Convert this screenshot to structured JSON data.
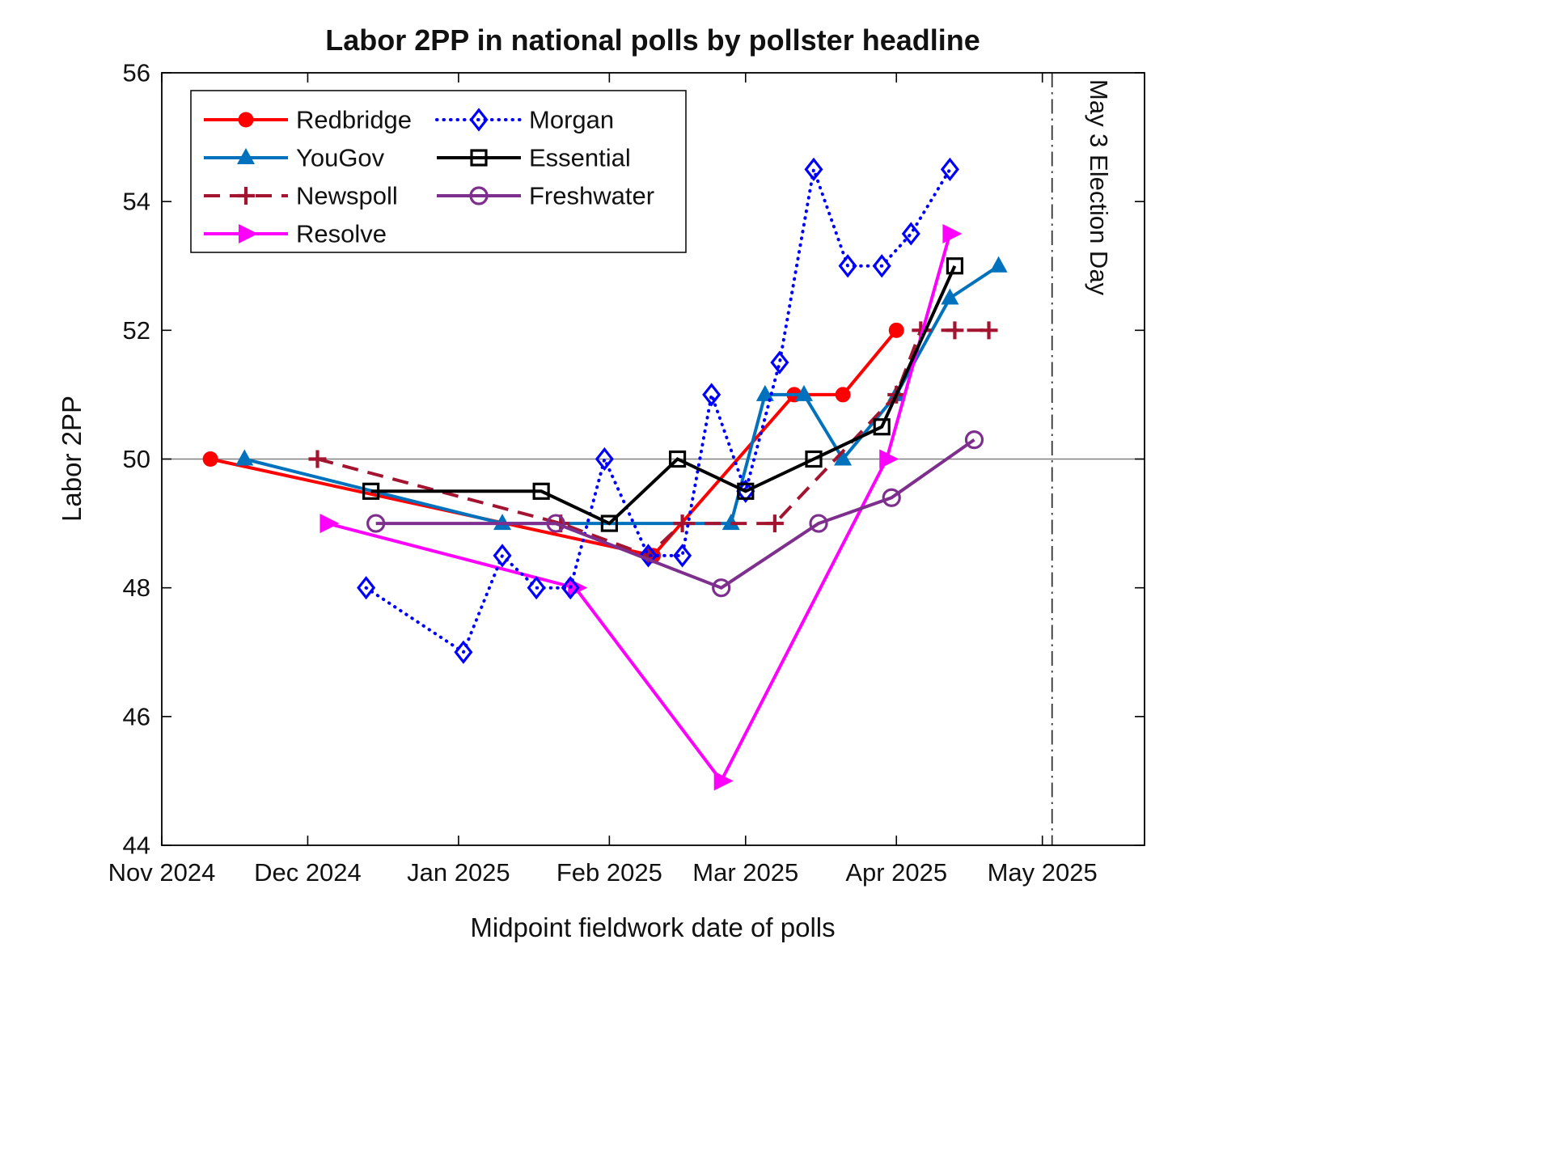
{
  "chart_data": {
    "type": "line",
    "title": "Labor 2PP in national polls by pollster headline",
    "xlabel": "Midpoint fieldwork date of polls",
    "ylabel": "Labor 2PP",
    "x_range": [
      "2024-11-01",
      "2025-05-22"
    ],
    "ylim": [
      44,
      56
    ],
    "yticks": [
      44,
      46,
      48,
      50,
      52,
      54,
      56
    ],
    "xticks": [
      {
        "date": "2024-11-01",
        "label": "Nov 2024"
      },
      {
        "date": "2024-12-01",
        "label": "Dec 2024"
      },
      {
        "date": "2025-01-01",
        "label": "Jan 2025"
      },
      {
        "date": "2025-02-01",
        "label": "Feb 2025"
      },
      {
        "date": "2025-03-01",
        "label": "Mar 2025"
      },
      {
        "date": "2025-04-01",
        "label": "Apr 2025"
      },
      {
        "date": "2025-05-01",
        "label": "May 2025"
      }
    ],
    "grid": "single horizontal reference line at y=50",
    "reference_line_y": 50,
    "event_line": {
      "date": "2025-05-03",
      "label": "May 3 Election Day",
      "style": "dash-dot",
      "color": "#333333"
    },
    "legend": {
      "position": "top-left",
      "columns": 2,
      "column1": [
        "Redbridge",
        "YouGov",
        "Newspoll",
        "Resolve"
      ],
      "column2": [
        "Morgan",
        "Essential",
        "Freshwater"
      ]
    },
    "series": [
      {
        "name": "Redbridge",
        "color": "#ff0000",
        "line_style": "solid",
        "marker": "circle-filled",
        "points": [
          [
            "2024-11-11",
            50.0
          ],
          [
            "2025-02-10",
            48.5
          ],
          [
            "2025-03-11",
            51.0
          ],
          [
            "2025-03-21",
            51.0
          ],
          [
            "2025-04-01",
            52.0
          ]
        ]
      },
      {
        "name": "YouGov",
        "color": "#0072bd",
        "line_style": "solid",
        "marker": "triangle-up-filled",
        "points": [
          [
            "2024-11-18",
            50.0
          ],
          [
            "2025-01-10",
            49.0
          ],
          [
            "2025-02-26",
            49.0
          ],
          [
            "2025-03-05",
            51.0
          ],
          [
            "2025-03-13",
            51.0
          ],
          [
            "2025-03-21",
            50.0
          ],
          [
            "2025-04-01",
            51.0
          ],
          [
            "2025-04-12",
            52.5
          ],
          [
            "2025-04-22",
            53.0
          ]
        ]
      },
      {
        "name": "Newspoll",
        "color": "#a2142f",
        "line_style": "dashed",
        "marker": "plus",
        "points": [
          [
            "2024-12-03",
            50.0
          ],
          [
            "2025-01-22",
            49.0
          ],
          [
            "2025-02-09",
            48.5
          ],
          [
            "2025-02-16",
            49.0
          ],
          [
            "2025-03-07",
            49.0
          ],
          [
            "2025-04-01",
            51.0
          ],
          [
            "2025-04-06",
            52.0
          ],
          [
            "2025-04-13",
            52.0
          ],
          [
            "2025-04-20",
            52.0
          ]
        ]
      },
      {
        "name": "Resolve",
        "color": "#ff00ff",
        "line_style": "solid",
        "marker": "triangle-right-filled",
        "points": [
          [
            "2024-12-05",
            49.0
          ],
          [
            "2025-01-25",
            48.0
          ],
          [
            "2025-02-24",
            45.0
          ],
          [
            "2025-03-30",
            50.0
          ],
          [
            "2025-04-12",
            53.5
          ]
        ]
      },
      {
        "name": "Morgan",
        "color": "#0000ff",
        "line_style": "dotted",
        "marker": "diamond-open",
        "points": [
          [
            "2024-12-13",
            48.0
          ],
          [
            "2025-01-02",
            47.0
          ],
          [
            "2025-01-10",
            48.5
          ],
          [
            "2025-01-17",
            48.0
          ],
          [
            "2025-01-24",
            48.0
          ],
          [
            "2025-01-31",
            50.0
          ],
          [
            "2025-02-09",
            48.5
          ],
          [
            "2025-02-16",
            48.5
          ],
          [
            "2025-02-22",
            51.0
          ],
          [
            "2025-03-01",
            49.5
          ],
          [
            "2025-03-08",
            51.5
          ],
          [
            "2025-03-15",
            54.5
          ],
          [
            "2025-03-22",
            53.0
          ],
          [
            "2025-03-29",
            53.0
          ],
          [
            "2025-04-04",
            53.5
          ],
          [
            "2025-04-12",
            54.5
          ]
        ]
      },
      {
        "name": "Essential",
        "color": "#000000",
        "line_style": "solid",
        "marker": "square-open",
        "points": [
          [
            "2024-12-14",
            49.5
          ],
          [
            "2025-01-18",
            49.5
          ],
          [
            "2025-02-01",
            49.0
          ],
          [
            "2025-02-15",
            50.0
          ],
          [
            "2025-03-01",
            49.5
          ],
          [
            "2025-03-15",
            50.0
          ],
          [
            "2025-03-29",
            50.5
          ],
          [
            "2025-04-13",
            53.0
          ]
        ]
      },
      {
        "name": "Freshwater",
        "color": "#7e2f8e",
        "line_style": "solid",
        "marker": "circle-open",
        "points": [
          [
            "2024-12-15",
            49.0
          ],
          [
            "2025-01-21",
            49.0
          ],
          [
            "2025-02-24",
            48.0
          ],
          [
            "2025-03-16",
            49.0
          ],
          [
            "2025-03-31",
            49.4
          ],
          [
            "2025-04-17",
            50.3
          ]
        ]
      }
    ]
  }
}
